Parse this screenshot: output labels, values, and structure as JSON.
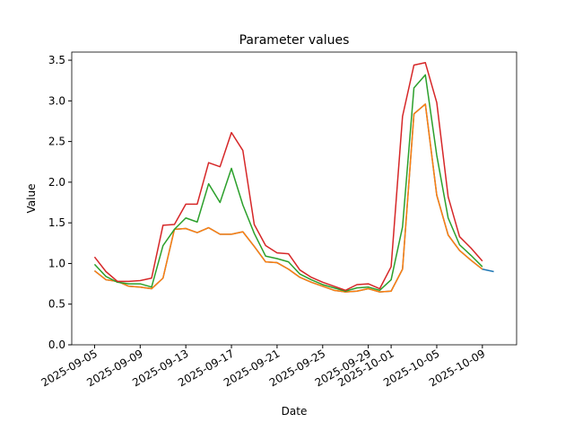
{
  "chart_data": {
    "type": "line",
    "title": "Parameter values",
    "x_label": "Date",
    "y_label": "Value",
    "x": [
      "2025-09-05",
      "2025-09-06",
      "2025-09-07",
      "2025-09-08",
      "2025-09-09",
      "2025-09-10",
      "2025-09-11",
      "2025-09-12",
      "2025-09-13",
      "2025-09-14",
      "2025-09-15",
      "2025-09-16",
      "2025-09-17",
      "2025-09-18",
      "2025-09-19",
      "2025-09-20",
      "2025-09-21",
      "2025-09-22",
      "2025-09-23",
      "2025-09-24",
      "2025-09-25",
      "2025-09-26",
      "2025-09-27",
      "2025-09-28",
      "2025-09-29",
      "2025-09-30",
      "2025-10-01",
      "2025-10-02",
      "2025-10-03",
      "2025-10-04",
      "2025-10-05",
      "2025-10-06",
      "2025-10-07",
      "2025-10-08",
      "2025-10-09",
      "2025-10-10"
    ],
    "series": [
      {
        "color": "#1f77b4",
        "values": [
          0.91,
          0.8,
          0.78,
          0.72,
          0.71,
          0.69,
          0.82,
          1.42,
          1.43,
          1.38,
          1.44,
          1.36,
          1.36,
          1.39,
          1.21,
          1.02,
          1.01,
          0.93,
          0.83,
          0.77,
          0.72,
          0.67,
          0.65,
          0.66,
          0.69,
          0.65,
          0.66,
          0.93,
          2.84,
          2.96,
          1.84,
          1.35,
          1.16,
          1.04,
          0.93,
          0.9
        ]
      },
      {
        "color": "#ff7f0e",
        "values": [
          0.91,
          0.8,
          0.78,
          0.72,
          0.71,
          0.69,
          0.82,
          1.42,
          1.43,
          1.38,
          1.44,
          1.36,
          1.36,
          1.39,
          1.21,
          1.02,
          1.01,
          0.93,
          0.83,
          0.77,
          0.72,
          0.67,
          0.65,
          0.66,
          0.69,
          0.65,
          0.66,
          0.93,
          2.84,
          2.96,
          1.84,
          1.35,
          1.16,
          1.04,
          0.93,
          null
        ]
      },
      {
        "color": "#2ca02c",
        "values": [
          0.99,
          0.84,
          0.77,
          0.75,
          0.75,
          0.71,
          1.22,
          1.42,
          1.56,
          1.51,
          1.98,
          1.75,
          2.17,
          1.72,
          1.37,
          1.09,
          1.06,
          1.02,
          0.87,
          0.8,
          0.74,
          0.7,
          0.66,
          0.7,
          0.71,
          0.67,
          0.8,
          1.45,
          3.16,
          3.32,
          2.33,
          1.56,
          1.23,
          1.1,
          0.96,
          null
        ]
      },
      {
        "color": "#d62728",
        "values": [
          1.08,
          0.9,
          0.78,
          0.78,
          0.79,
          0.82,
          1.47,
          1.48,
          1.73,
          1.73,
          2.24,
          2.19,
          2.61,
          2.39,
          1.48,
          1.22,
          1.13,
          1.12,
          0.92,
          0.83,
          0.77,
          0.72,
          0.67,
          0.74,
          0.75,
          0.69,
          0.96,
          2.81,
          3.44,
          3.47,
          2.98,
          1.82,
          1.33,
          1.19,
          1.03,
          null
        ]
      }
    ],
    "xlim": [
      "2025-09-03",
      "2025-10-12"
    ],
    "xticks": [
      "2025-09-05",
      "2025-09-09",
      "2025-09-13",
      "2025-09-17",
      "2025-09-21",
      "2025-09-25",
      "2025-09-29",
      "2025-10-01",
      "2025-10-05",
      "2025-10-09"
    ],
    "ylim": [
      0,
      3.6
    ],
    "yticks": [
      0,
      0.5,
      1,
      1.5,
      2,
      2.5,
      3,
      3.5
    ],
    "ytick_labels": [
      "0.0",
      "0.5",
      "1.0",
      "1.5",
      "2.0",
      "2.5",
      "3.0",
      "3.5"
    ]
  }
}
